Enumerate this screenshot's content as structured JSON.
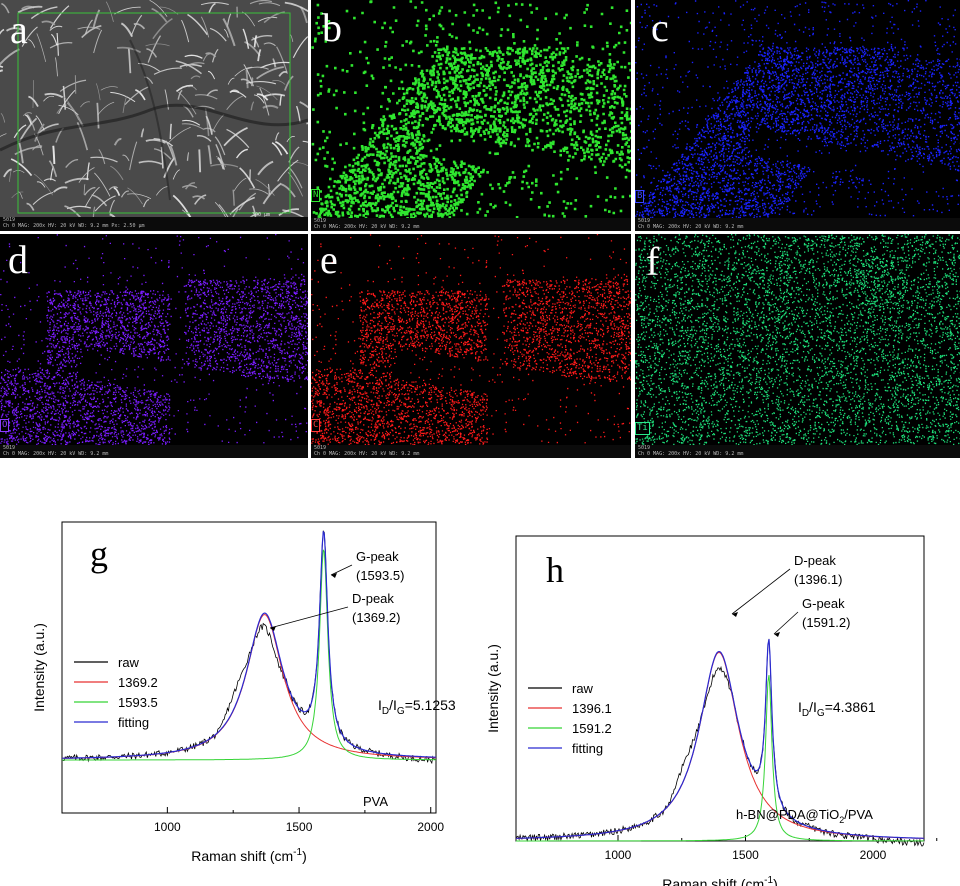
{
  "panels": [
    {
      "letter": "a",
      "element": "",
      "color": "#cfcfcf",
      "info": [
        "5019",
        "Ch 0  MAG: 200x  HV: 20 kV  WD: 9.2 mm  Px: 2.50 µm"
      ],
      "scalebar": "300 µm"
    },
    {
      "letter": "b",
      "element": "N",
      "color": "#2fe62f",
      "info": [
        "5019",
        "Ch 0  MAG: 200x  HV: 20 kV  WD: 9.2 mm"
      ]
    },
    {
      "letter": "c",
      "element": "B",
      "color": "#1a22ff",
      "info": [
        "5019",
        "Ch 0  MAG: 200x  HV: 20 kV  WD: 9.2 mm"
      ]
    },
    {
      "letter": "d",
      "element": "O",
      "color": "#7a1cff",
      "info": [
        "5019",
        "Ch 0  MAG: 200x  HV: 20 kV  WD: 9.2 mm"
      ]
    },
    {
      "letter": "e",
      "element": "C",
      "color": "#ff1a1a",
      "info": [
        "5019",
        "Ch 0  MAG: 200x  HV: 20 kV  WD: 9.2 mm"
      ]
    },
    {
      "letter": "f",
      "element": "Ti",
      "color": "#1de07a",
      "info": [
        "5019",
        "Ch 0  MAG: 200x  HV: 20 kV  WD: 9.2 mm"
      ]
    }
  ],
  "chart_data": [
    {
      "type": "line",
      "panel_label": "g",
      "xlabel": "Raman shift (cm",
      "xlabel_sup": "-1",
      "xlabel_close": ")",
      "ylabel": "Intensity (a.u.)",
      "xlim": [
        600,
        2020
      ],
      "ylim": [
        0,
        1.1
      ],
      "xticks": [
        1000,
        1500,
        2000
      ],
      "xtick_labels": [
        "1000",
        "1500",
        "2000"
      ],
      "baseline": 0.2,
      "legend": [
        "raw",
        "1369.2",
        "1593.5",
        "fitting"
      ],
      "series": [
        {
          "name": "raw",
          "color": "#000000",
          "noise": true
        },
        {
          "name": "1369.2",
          "color": "#e83232",
          "peak": {
            "center": 1369.2,
            "height": 0.55,
            "width": 170
          }
        },
        {
          "name": "1593.5",
          "color": "#36d436",
          "peak": {
            "center": 1593.5,
            "height": 0.8,
            "width": 38
          }
        },
        {
          "name": "fitting",
          "color": "#2a2ad0"
        }
      ],
      "annotations": [
        {
          "text": "G-peak",
          "value": "(1593.5)"
        },
        {
          "text": "D-peak",
          "value": "(1369.2)"
        }
      ],
      "ratio": {
        "pre": "I",
        "sub1": "D",
        "mid": "/I",
        "sub2": "G",
        "post": "=5.1253"
      },
      "sample": "PVA"
    },
    {
      "type": "line",
      "panel_label": "h",
      "xlabel": "Raman shift (cm",
      "xlabel_sup": "-1",
      "xlabel_close": ")",
      "ylabel": "Intensity (a.u.)",
      "xlim": [
        600,
        2200
      ],
      "ylim": [
        0,
        1.1
      ],
      "xticks": [
        1000,
        1500,
        2000
      ],
      "xtick_labels": [
        "1000",
        "1500",
        "2000"
      ],
      "baseline": 0.0,
      "legend": [
        "raw",
        "1396.1",
        "1591.2",
        "fitting"
      ],
      "series": [
        {
          "name": "raw",
          "color": "#000000",
          "noise": true
        },
        {
          "name": "1396.1",
          "color": "#e83232",
          "peak": {
            "center": 1396.1,
            "height": 0.68,
            "width": 190
          }
        },
        {
          "name": "1591.2",
          "color": "#36d436",
          "peak": {
            "center": 1591.2,
            "height": 0.6,
            "width": 30
          }
        },
        {
          "name": "fitting",
          "color": "#2a2ad0"
        }
      ],
      "annotations": [
        {
          "text": "D-peak",
          "value": "(1396.1)"
        },
        {
          "text": "G-peak",
          "value": "(1591.2)"
        }
      ],
      "ratio": {
        "pre": "I",
        "sub1": "D",
        "mid": "/I",
        "sub2": "G",
        "post": "=4.3861"
      },
      "sample_parts": [
        "h-BN@PDA@TiO",
        "2",
        "/PVA"
      ]
    }
  ]
}
